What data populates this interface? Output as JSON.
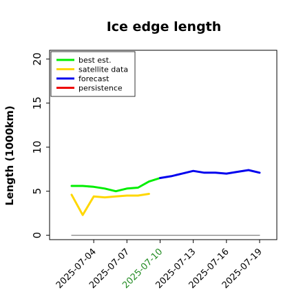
{
  "chart_data": {
    "type": "line",
    "title": "Ice edge length",
    "xlabel": "",
    "ylabel": "Length (1000km)",
    "ylim": [
      -0.5,
      21
    ],
    "xlim": [
      "2025-07-01",
      "2025-07-19"
    ],
    "y_ticks": [
      0,
      5,
      10,
      15,
      20
    ],
    "x_ticks": [
      {
        "date": "2025-07-04",
        "label": "2025-07-04",
        "color": "#000000"
      },
      {
        "date": "2025-07-07",
        "label": "2025-07-07",
        "color": "#000000"
      },
      {
        "date": "2025-07-10",
        "label": "2025-07-10",
        "color": "#228b22"
      },
      {
        "date": "2025-07-13",
        "label": "2025-07-13",
        "color": "#000000"
      },
      {
        "date": "2025-07-16",
        "label": "2025-07-16",
        "color": "#000000"
      },
      {
        "date": "2025-07-19",
        "label": "2025-07-19",
        "color": "#000000"
      }
    ],
    "grid": false,
    "legend_position": "top-left",
    "series": [
      {
        "name": "best est.",
        "color": "#00ee00",
        "x": [
          "2025-07-02",
          "2025-07-03",
          "2025-07-04",
          "2025-07-05",
          "2025-07-06",
          "2025-07-07",
          "2025-07-08",
          "2025-07-09",
          "2025-07-10"
        ],
        "y": [
          5.6,
          5.6,
          5.5,
          5.3,
          5.0,
          5.3,
          5.4,
          6.1,
          6.5
        ]
      },
      {
        "name": "satellite data",
        "color": "#ffd700",
        "x": [
          "2025-07-02",
          "2025-07-03",
          "2025-07-04",
          "2025-07-05",
          "2025-07-06",
          "2025-07-07",
          "2025-07-08",
          "2025-07-09"
        ],
        "y": [
          4.6,
          2.3,
          4.4,
          4.3,
          4.4,
          4.5,
          4.5,
          4.7
        ]
      },
      {
        "name": "forecast",
        "color": "#0000ee",
        "x": [
          "2025-07-10",
          "2025-07-11",
          "2025-07-12",
          "2025-07-13",
          "2025-07-14",
          "2025-07-15",
          "2025-07-16",
          "2025-07-17",
          "2025-07-18",
          "2025-07-19"
        ],
        "y": [
          6.5,
          6.7,
          7.0,
          7.3,
          7.1,
          7.1,
          7.0,
          7.2,
          7.4,
          7.1
        ]
      },
      {
        "name": "persistence",
        "color": "#ee0000",
        "x": [],
        "y": []
      },
      {
        "name": "",
        "color": "#808080",
        "x": [
          "2025-07-02",
          "2025-07-19"
        ],
        "y": [
          0,
          0
        ]
      }
    ]
  }
}
